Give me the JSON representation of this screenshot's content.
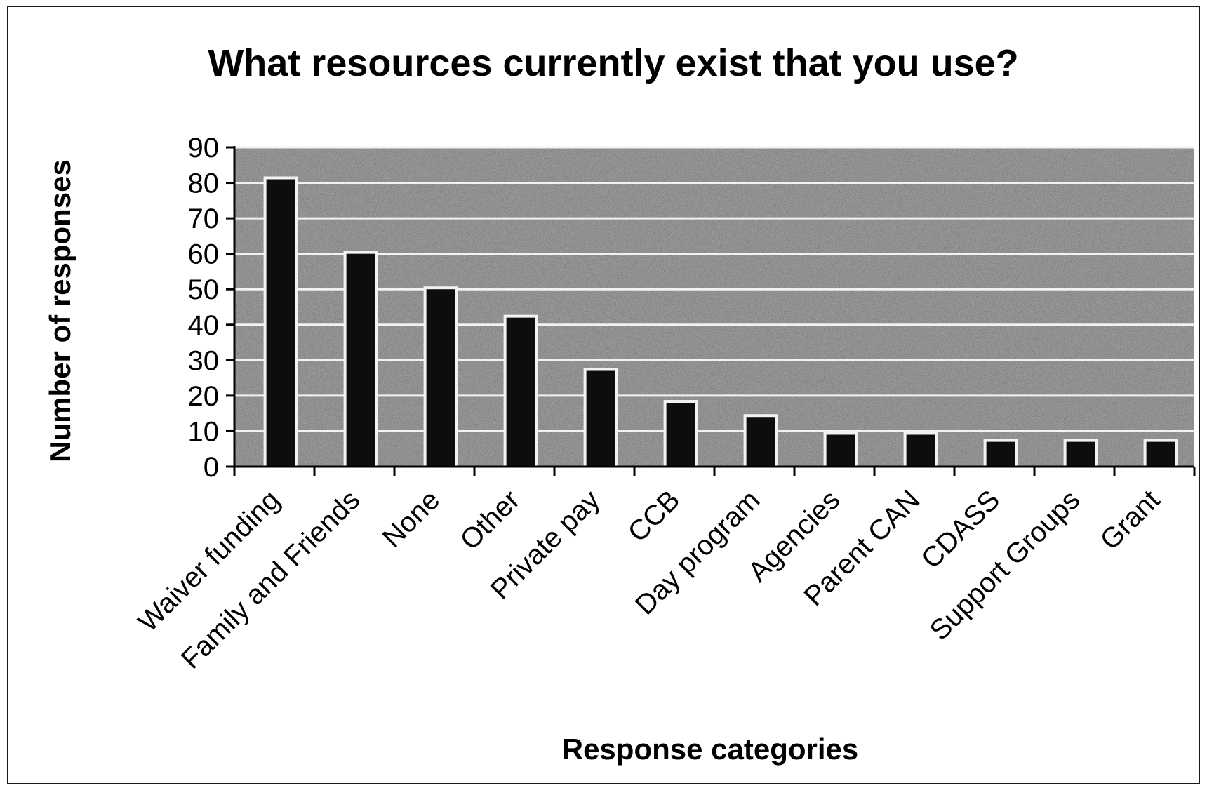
{
  "chart_data": {
    "type": "bar",
    "title": "What resources currently exist that you use?",
    "xlabel": "Response categories",
    "ylabel": "Number of responses",
    "categories": [
      "Waiver funding",
      "Family and Friends",
      "None",
      "Other",
      "Private pay",
      "CCB",
      "Day program",
      "Agencies",
      "Parent CAN",
      "CDASS",
      "Support Groups",
      "Grant"
    ],
    "values": [
      81,
      60,
      50,
      42,
      27,
      18,
      14,
      9,
      9,
      7,
      7,
      7
    ],
    "ylim": [
      0,
      90
    ],
    "yticks": [
      0,
      10,
      20,
      30,
      40,
      50,
      60,
      70,
      80,
      90
    ],
    "grid": true,
    "legend": "none",
    "colors": {
      "bar": "#0d0d0d",
      "plot_background": "#9a9a9a",
      "gridline": "#f2f2f2",
      "axis": "#000000"
    }
  }
}
